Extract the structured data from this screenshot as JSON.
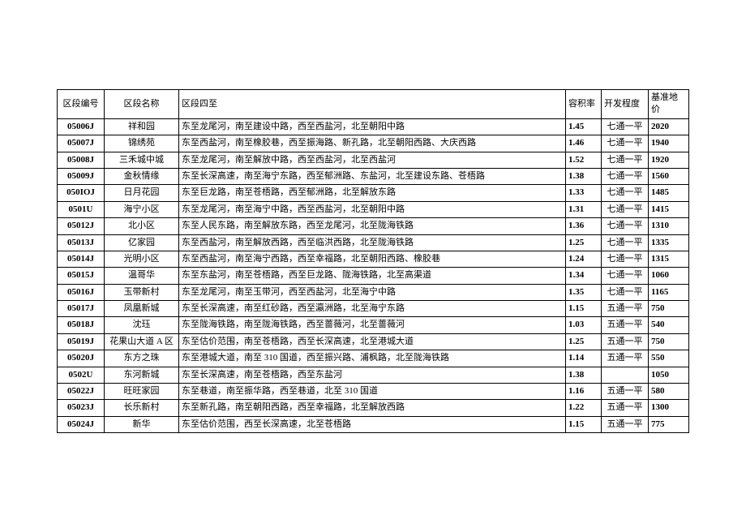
{
  "table": {
    "columns": [
      "区段编号",
      "区段名称",
      "区段四至",
      "容积率",
      "开发程度",
      "基准地价"
    ],
    "rows": [
      {
        "id": "05006J",
        "name": "祥和园",
        "desc": "东至龙尾河，南至建设中路，西至西盐河，北至朝阳中路",
        "ratio": "1.45",
        "dev": "七通一平",
        "price": "2020"
      },
      {
        "id": "05007J",
        "name": "锦绣苑",
        "desc": "东至西盐河，南至橡胶巷，西至振海路、新孔路，北至朝阳西路、大庆西路",
        "ratio": "1.46",
        "dev": "七通一平",
        "price": "1940"
      },
      {
        "id": "05008J",
        "name": "三禾城中城",
        "desc": "东至龙尾河，南至解放中路，西至西盐河，北至西盐河",
        "ratio": "1.52",
        "dev": "七通一平",
        "price": "1920"
      },
      {
        "id": "05009J",
        "name": "金秋情缘",
        "desc": "东至长深高速，南至海宁东路，西至郁洲路、东盐河，北至建设东路、苍梧路",
        "ratio": "1.38",
        "dev": "七通一平",
        "price": "1560"
      },
      {
        "id": "050IOJ",
        "name": "日月花园",
        "desc": "东至巨龙路，南至苍梧路，西至郁洲路，北至解放东路",
        "ratio": "1.33",
        "dev": "七通一平",
        "price": "1485"
      },
      {
        "id": "0501U",
        "name": "海宁小区",
        "desc": "东至龙尾河，南至海宁中路，西至西盐河，北至朝阳中路",
        "ratio": "1.31",
        "dev": "七通一平",
        "price": "1415"
      },
      {
        "id": "05012J",
        "name": "北小区",
        "desc": "东至人民东路，南至解放东路，西至龙尾河，北至陇海铁路",
        "ratio": "1.36",
        "dev": "七通一平",
        "price": "1310"
      },
      {
        "id": "05013J",
        "name": "亿家园",
        "desc": "东至西盐河，南至解放西路，西至临洪西路，北至陇海铁路",
        "ratio": "1.25",
        "dev": "七通一平",
        "price": "1335"
      },
      {
        "id": "05014J",
        "name": "光明小区",
        "desc": "东至西盐河，南至海宁西路，西至幸福路，北至朝阳西路、橡胶巷",
        "ratio": "1.24",
        "dev": "七通一平",
        "price": "1315"
      },
      {
        "id": "05015J",
        "name": "温哥华",
        "desc": "东至东盐河，南至苍梧路，西至巨龙路、陇海铁路，北至高渠道",
        "ratio": "1.34",
        "dev": "七通一平",
        "price": "1060"
      },
      {
        "id": "05016J",
        "name": "玉带新村",
        "desc": "东至龙尾河，南至玉带河，西至西盐河，北至海宁中路",
        "ratio": "1.35",
        "dev": "七通一平",
        "price": "1165"
      },
      {
        "id": "05017J",
        "name": "凤凰新城",
        "desc": "东至长深高速，南至红砂路，西至瀛洲路，北至海宁东路",
        "ratio": "1.15",
        "dev": "五通一平",
        "price": "750"
      },
      {
        "id": "05018J",
        "name": "沈珏",
        "desc": "东至陇海铁路，南至陇海铁路，西至蔷薇河，北至蔷薇河",
        "ratio": "1.03",
        "dev": "五通一平",
        "price": "540"
      },
      {
        "id": "05019J",
        "name": "花果山大道 A 区",
        "desc": "东至估价范围，南至苍梧路，西至长深高速，北至港城大道",
        "ratio": "1.25",
        "dev": "五通一平",
        "price": "750"
      },
      {
        "id": "05020J",
        "name": "东方之珠",
        "desc": "东至港城大道，南至 310 国道，西至振兴路、浦枫路，北至陇海铁路",
        "ratio": "1.14",
        "dev": "五通一平",
        "price": "550"
      },
      {
        "id": "0502U",
        "name": "东河新城",
        "desc": "东至长深高速，南至苍梧路，西至东盐河",
        "ratio": "1.38",
        "dev": "",
        "price": "1050"
      },
      {
        "id": "05022J",
        "name": "旺旺家园",
        "desc": "东至巷道，南至振华路，西至巷道，北至 310 国道",
        "ratio": "1.16",
        "dev": "五通一平",
        "price": "580"
      },
      {
        "id": "05023J",
        "name": "长乐新村",
        "desc": "东至新孔路，南至朝阳西路，西至幸福路，北至解放西路",
        "ratio": "1.22",
        "dev": "五通一平",
        "price": "1300"
      },
      {
        "id": "05024J",
        "name": "新华",
        "desc": "东至估价范围，西至长深高速，北至苍梧路",
        "ratio": "1.15",
        "dev": "五通一平",
        "price": "775"
      }
    ]
  }
}
